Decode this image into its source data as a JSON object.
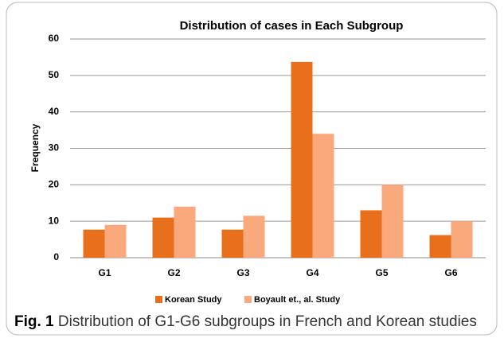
{
  "chart_data": {
    "type": "bar",
    "title": "Distribution of cases in Each Subgroup",
    "ylabel": "Frequency",
    "categories": [
      "G1",
      "G2",
      "G3",
      "G4",
      "G5",
      "G6"
    ],
    "series": [
      {
        "name": "Korean Study",
        "color": "#e8701c",
        "values": [
          7.7,
          11,
          7.7,
          53.7,
          13,
          6.2
        ]
      },
      {
        "name": "Boyault et., al. Study",
        "color": "#f9a97c",
        "values": [
          9,
          14,
          11.5,
          34,
          20,
          10
        ]
      }
    ],
    "ylim": [
      0,
      60
    ],
    "yticks": [
      0,
      10,
      20,
      30,
      40,
      50,
      60
    ],
    "grid": true,
    "legend": "bottom"
  },
  "caption": {
    "label": "Fig. 1",
    "text": "Distribution of G1-G6 subgroups in French and Korean studies"
  }
}
